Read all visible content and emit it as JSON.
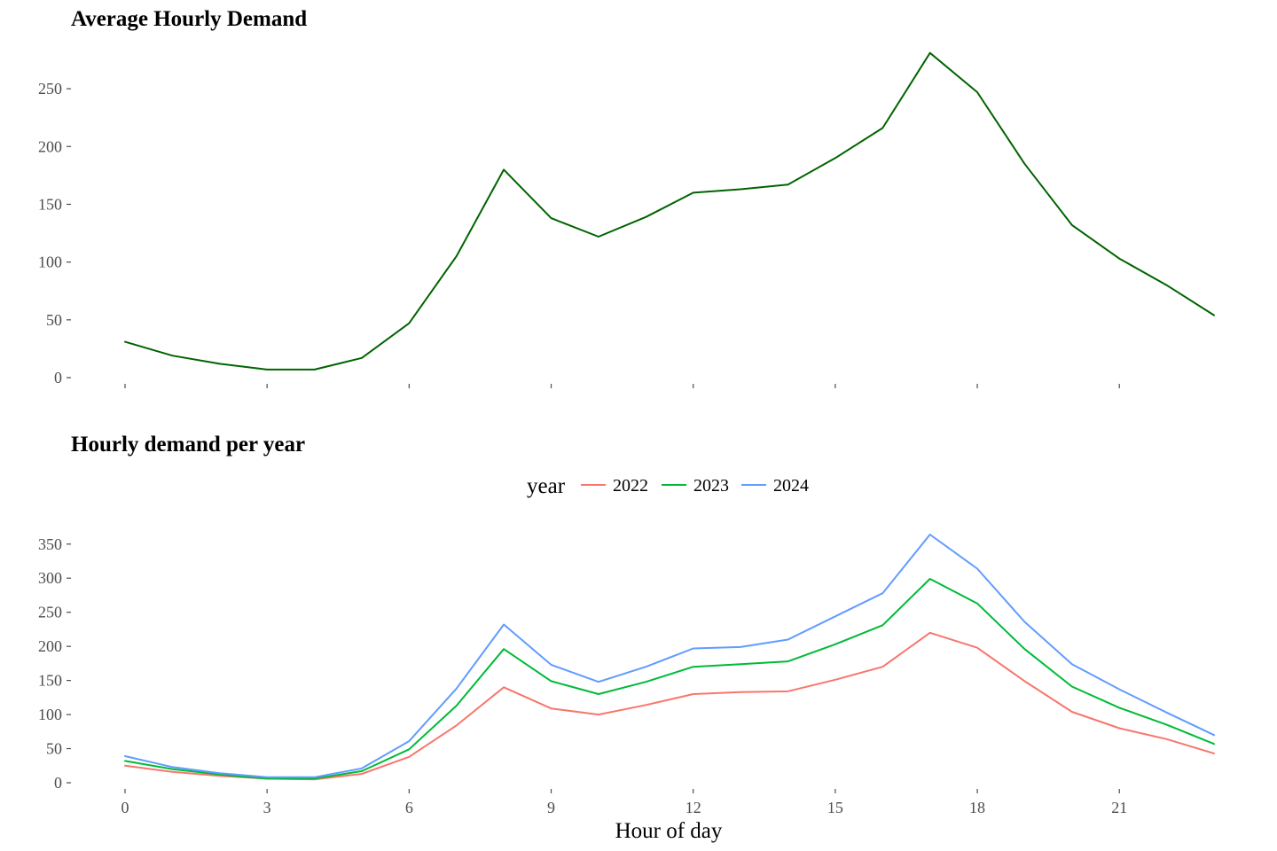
{
  "chart_data": [
    {
      "type": "line",
      "title": "Average Hourly Demand",
      "xlabel": "",
      "ylabel": "",
      "x": [
        0,
        1,
        2,
        3,
        4,
        5,
        6,
        7,
        8,
        9,
        10,
        11,
        12,
        13,
        14,
        15,
        16,
        17,
        18,
        19,
        20,
        21,
        22,
        23
      ],
      "xticks": [
        0,
        3,
        6,
        9,
        12,
        15,
        18,
        21
      ],
      "xtick_labels_visible": false,
      "yticks": [
        0,
        50,
        100,
        150,
        200,
        250
      ],
      "xlim": [
        0,
        23
      ],
      "ylim": [
        0,
        280
      ],
      "grid": false,
      "series": [
        {
          "name": "",
          "color": "#006400",
          "values": [
            31,
            19,
            12,
            7,
            7,
            17,
            47,
            105,
            180,
            138,
            122,
            139,
            160,
            163,
            167,
            190,
            216,
            281,
            247,
            185,
            132,
            103,
            80,
            54
          ]
        }
      ]
    },
    {
      "type": "line",
      "title": "Hourly demand per year",
      "xlabel": "Hour of day",
      "ylabel": "",
      "x": [
        0,
        1,
        2,
        3,
        4,
        5,
        6,
        7,
        8,
        9,
        10,
        11,
        12,
        13,
        14,
        15,
        16,
        17,
        18,
        19,
        20,
        21,
        22,
        23
      ],
      "xticks": [
        0,
        3,
        6,
        9,
        12,
        15,
        18,
        21
      ],
      "xtick_labels_visible": true,
      "yticks": [
        0,
        50,
        100,
        150,
        200,
        250,
        300,
        350
      ],
      "xlim": [
        0,
        23
      ],
      "ylim": [
        0,
        364
      ],
      "grid": false,
      "legend": {
        "title": "year",
        "position": "top"
      },
      "series": [
        {
          "name": "2022",
          "color": "#F8766D",
          "values": [
            25,
            16,
            10,
            6,
            5,
            13,
            38,
            84,
            140,
            109,
            100,
            114,
            130,
            133,
            134,
            151,
            170,
            220,
            198,
            149,
            104,
            80,
            64,
            43
          ]
        },
        {
          "name": "2023",
          "color": "#00BA38",
          "values": [
            32,
            20,
            12,
            6,
            6,
            17,
            49,
            113,
            196,
            149,
            130,
            148,
            170,
            174,
            178,
            203,
            231,
            299,
            263,
            196,
            141,
            110,
            85,
            57
          ]
        },
        {
          "name": "2024",
          "color": "#619CFF",
          "values": [
            39,
            23,
            14,
            8,
            8,
            21,
            61,
            138,
            232,
            173,
            148,
            170,
            197,
            199,
            210,
            244,
            278,
            364,
            314,
            236,
            174,
            137,
            103,
            70
          ]
        }
      ]
    }
  ]
}
